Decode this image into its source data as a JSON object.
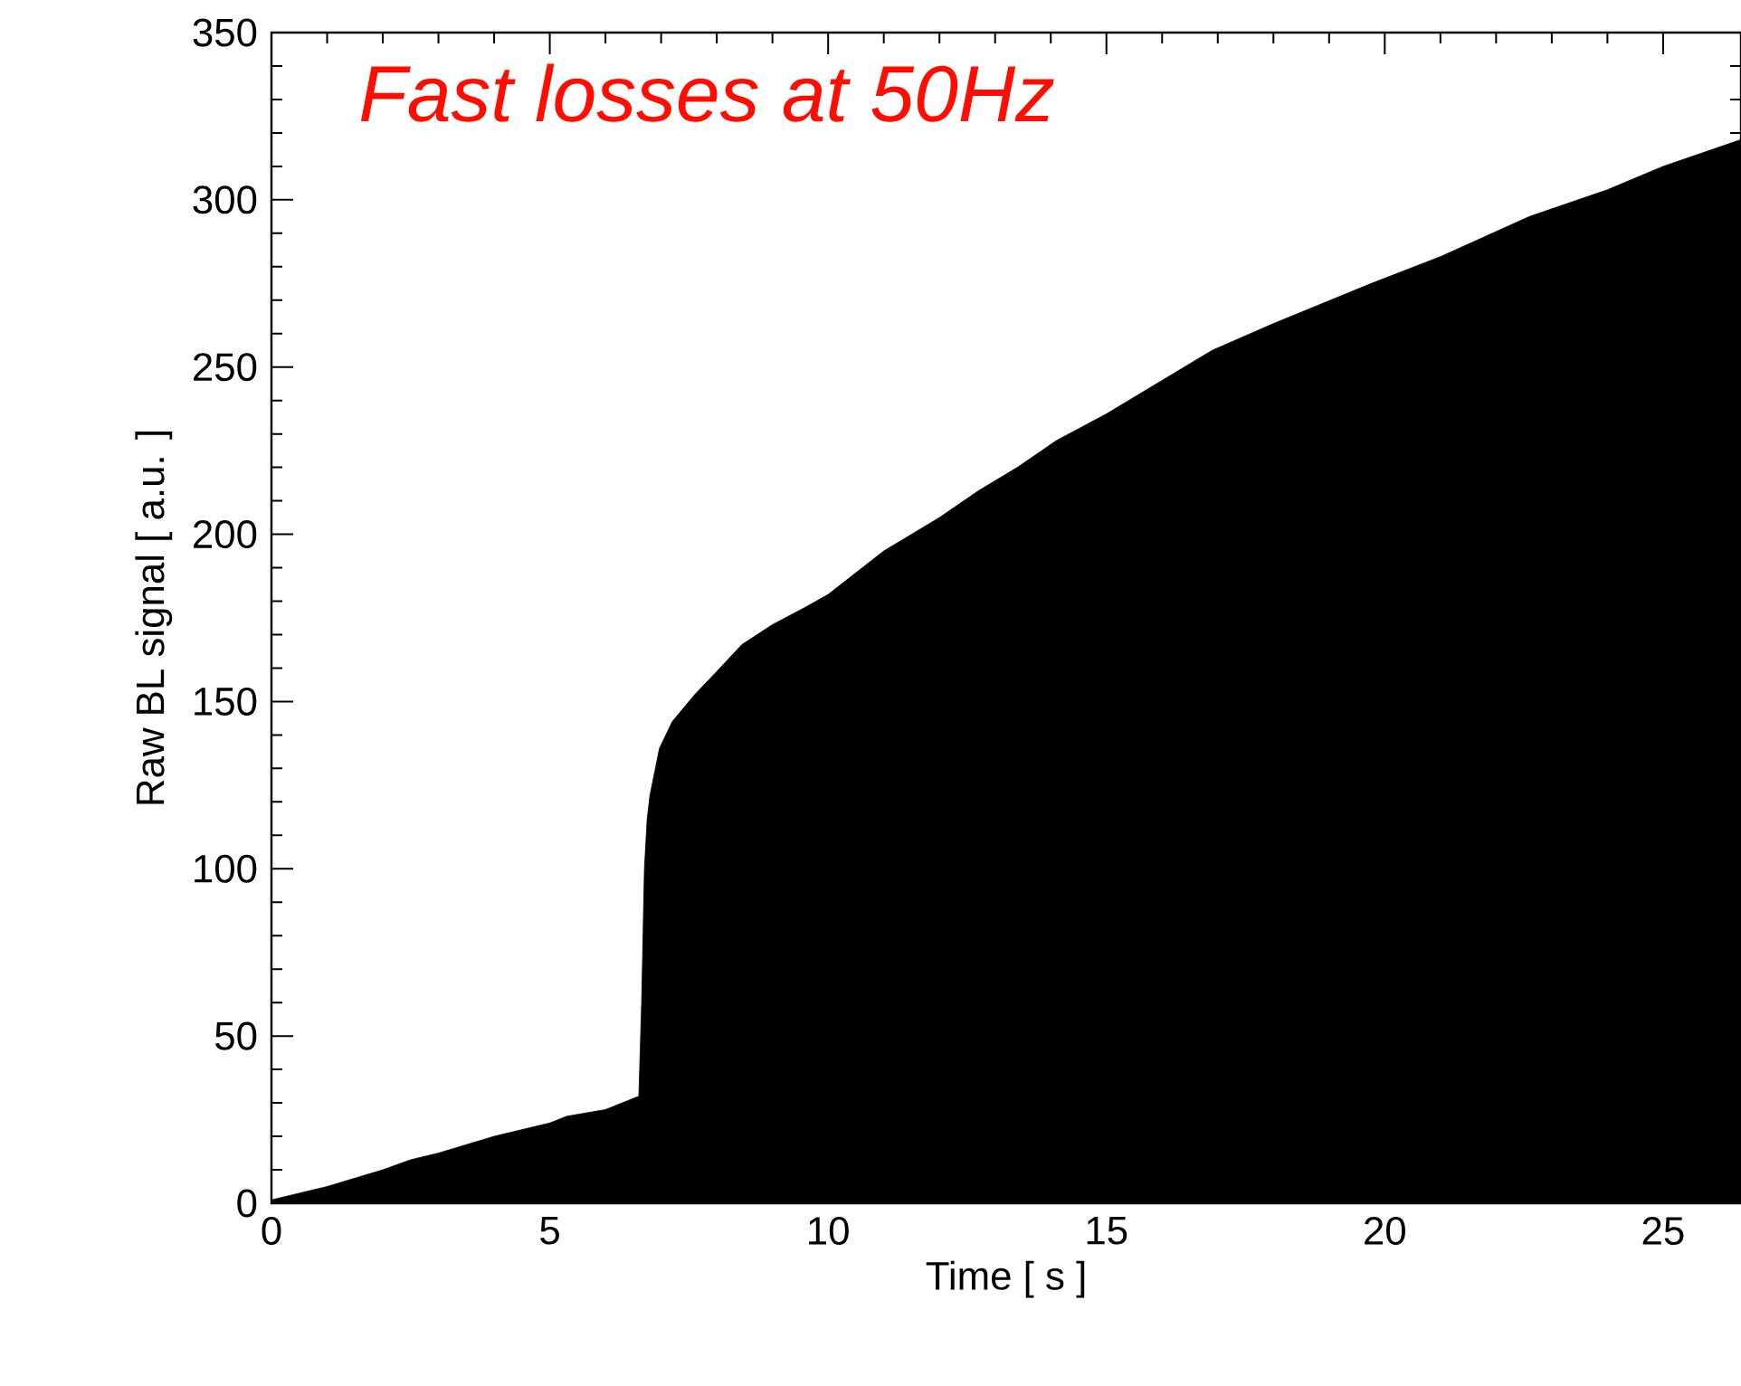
{
  "chart_data": {
    "type": "area",
    "xlabel": "Time [ s ]",
    "ylabel": "Raw BL signal [ a.u. ]",
    "annotations": [
      "Fast losses at 50Hz"
    ],
    "series": [
      {
        "color": "#000000",
        "x": [
          0,
          0.5,
          1,
          2,
          2.5,
          3,
          4,
          5,
          5.3,
          6,
          6.6,
          6.65,
          6.7,
          6.75,
          6.8,
          6.97,
          7.2,
          7.6,
          8,
          8.45,
          9,
          9.57,
          10,
          11,
          12,
          12.7,
          13.4,
          14.1,
          15,
          16,
          16.9,
          18,
          19.76,
          21,
          22.6,
          24,
          25,
          26.4
        ],
        "values": [
          1,
          3,
          5,
          10,
          13,
          15,
          20,
          24,
          26,
          28,
          32,
          60,
          100,
          115,
          122,
          136,
          144,
          152,
          159,
          167,
          173,
          178,
          182,
          195,
          205,
          213,
          220,
          228,
          236,
          246,
          255,
          263,
          275,
          283,
          295,
          303,
          310,
          318
        ]
      }
    ],
    "xlim": [
      0,
      26.4
    ],
    "ylim": [
      0,
      350
    ],
    "xticks": [
      0,
      5,
      10,
      15,
      20,
      25
    ],
    "yticks": [
      0,
      50,
      100,
      150,
      200,
      250,
      300,
      350
    ],
    "grid": false
  }
}
